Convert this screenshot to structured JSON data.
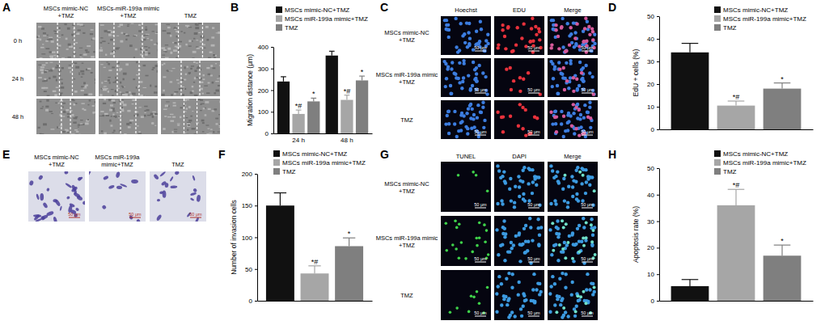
{
  "chart_data": [
    {
      "type": "bar",
      "panel_label": "B",
      "y_label": "Migration distance (μm)",
      "categories": [
        "24 h",
        "48 h"
      ],
      "series": [
        {
          "name": "MSCs mimic-NC+TMZ",
          "color": "#111111",
          "values": [
            240,
            360
          ],
          "errors": [
            22,
            20
          ]
        },
        {
          "name": "MSCs miR-199a mimic+TMZ",
          "color": "#a6a6a6",
          "values": [
            90,
            155
          ],
          "errors": [
            18,
            22
          ],
          "annotations": [
            "*#",
            "*#"
          ]
        },
        {
          "name": "TMZ",
          "color": "#7f7f7f",
          "values": [
            148,
            245
          ],
          "errors": [
            15,
            20
          ],
          "annotations": [
            "*",
            "*"
          ]
        }
      ],
      "ylim": [
        0,
        400
      ],
      "yticks": [
        0,
        100,
        200,
        300,
        400
      ],
      "legend": "top-left"
    },
    {
      "type": "bar",
      "panel_label": "D",
      "y_label": "EdU + cells (%)",
      "categories": [
        null
      ],
      "series": [
        {
          "name": "MSCs mimic-NC+TMZ",
          "color": "#111111",
          "values": [
            34
          ],
          "errors": [
            4
          ]
        },
        {
          "name": "MSCs miR-199a mimic+TMZ",
          "color": "#a6a6a6",
          "values": [
            10.5
          ],
          "errors": [
            2
          ],
          "annotations": [
            "*#"
          ]
        },
        {
          "name": "TMZ",
          "color": "#7f7f7f",
          "values": [
            18
          ],
          "errors": [
            2.5
          ],
          "annotations": [
            "*"
          ]
        }
      ],
      "ylim": [
        0,
        50
      ],
      "yticks": [
        0,
        10,
        20,
        30,
        40,
        50
      ],
      "legend": "top-right"
    },
    {
      "type": "bar",
      "panel_label": "F",
      "y_label": "Number of invasion cells",
      "categories": [
        null
      ],
      "series": [
        {
          "name": "MSCs mimic-NC+TMZ",
          "color": "#111111",
          "values": [
            150
          ],
          "errors": [
            20
          ]
        },
        {
          "name": "MSCs miR-199a mimic+TMZ",
          "color": "#a6a6a6",
          "values": [
            43
          ],
          "errors": [
            12
          ],
          "annotations": [
            "*#"
          ]
        },
        {
          "name": "TMZ",
          "color": "#7f7f7f",
          "values": [
            86
          ],
          "errors": [
            13
          ],
          "annotations": [
            "*"
          ]
        }
      ],
      "ylim": [
        0,
        200
      ],
      "yticks": [
        0,
        50,
        100,
        150,
        200
      ],
      "legend": "top-right"
    },
    {
      "type": "bar",
      "panel_label": "H",
      "y_label": "Apoptosis rate (%)",
      "categories": [
        null
      ],
      "series": [
        {
          "name": "MSCs mimic-NC+TMZ",
          "color": "#111111",
          "values": [
            5.5
          ],
          "errors": [
            2.5
          ]
        },
        {
          "name": "MSCs miR-199a mimic+TMZ",
          "color": "#a6a6a6",
          "values": [
            36
          ],
          "errors": [
            6
          ],
          "annotations": [
            "*#"
          ]
        },
        {
          "name": "TMZ",
          "color": "#7f7f7f",
          "values": [
            17
          ],
          "errors": [
            4
          ],
          "annotations": [
            "*"
          ]
        }
      ],
      "ylim": [
        0,
        50
      ],
      "yticks": [
        0,
        10,
        20,
        30,
        40,
        50
      ],
      "legend": "top-right"
    }
  ],
  "panels": {
    "A": {
      "label": "A",
      "columns": [
        "MSCs mimic-NC\n+TMZ",
        "MSCs-miR-199a mimic\n+TMZ",
        "TMZ"
      ],
      "rows": [
        "0 h",
        "24 h",
        "48 h"
      ]
    },
    "C": {
      "label": "C",
      "columns": [
        "Hoechst",
        "EDU",
        "Merge"
      ],
      "rows": [
        "MSCs mimic-NC\n+TMZ",
        "MSCs miR-199a mimic\n+TMZ",
        "TMZ"
      ],
      "scale_bar": "50 μm"
    },
    "E": {
      "label": "E",
      "columns": [
        "MSCs mimic-NC\n+TMZ",
        "MSCs miR-199a\nmimic+TMZ",
        "TMZ"
      ],
      "scale_bar": "50 μm"
    },
    "G": {
      "label": "G",
      "columns": [
        "TUNEL",
        "DAPI",
        "Merge"
      ],
      "rows": [
        "MSCs mimic-NC\n+TMZ",
        "MSCs miR-199a mimic\n+TMZ",
        "TMZ"
      ],
      "scale_bar": "50 μm"
    }
  }
}
